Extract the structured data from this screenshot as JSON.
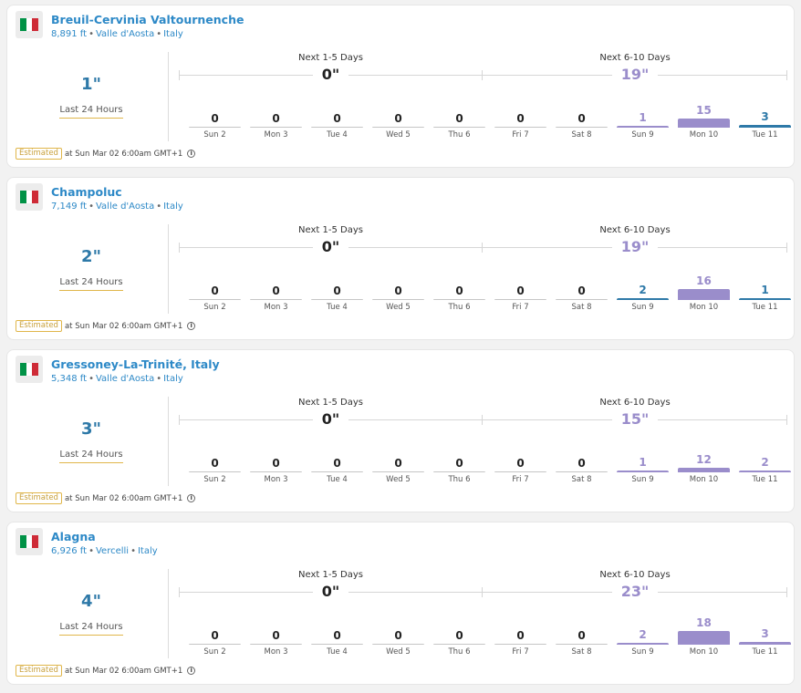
{
  "colors": {
    "link": "#2d89c7",
    "last24": "#2e79a8",
    "forecast": "#9a8dcb",
    "bar_purple": "#9a8dcb",
    "bar_blue": "#2e79a8",
    "bar_gray": "#c6c6c6",
    "flag": [
      "#009246",
      "#ffffff",
      "#ce2b37"
    ]
  },
  "resorts": [
    {
      "name": "Breuil-Cervinia Valtournenche",
      "elevation": "8,891 ft",
      "region": "Valle d'Aosta",
      "country": "Italy",
      "flag_icon": "italy-flag-icon",
      "last24": {
        "value": "1\"",
        "label": "Last 24 Hours"
      },
      "period1": {
        "label": "Next 1-5 Days",
        "total": "0\""
      },
      "period2": {
        "label": "Next 6-10 Days",
        "total": "19\""
      },
      "days": [
        {
          "day": "Sun 2",
          "value": "0",
          "amount": 0,
          "tone": "gray"
        },
        {
          "day": "Mon 3",
          "value": "0",
          "amount": 0,
          "tone": "gray"
        },
        {
          "day": "Tue 4",
          "value": "0",
          "amount": 0,
          "tone": "gray"
        },
        {
          "day": "Wed 5",
          "value": "0",
          "amount": 0,
          "tone": "gray"
        },
        {
          "day": "Thu 6",
          "value": "0",
          "amount": 0,
          "tone": "gray"
        },
        {
          "day": "Fri 7",
          "value": "0",
          "amount": 0,
          "tone": "gray"
        },
        {
          "day": "Sat 8",
          "value": "0",
          "amount": 0,
          "tone": "gray"
        },
        {
          "day": "Sun 9",
          "value": "1",
          "amount": 1,
          "tone": "purple"
        },
        {
          "day": "Mon 10",
          "value": "15",
          "amount": 15,
          "tone": "purple"
        },
        {
          "day": "Tue 11",
          "value": "3",
          "amount": 3,
          "tone": "blue"
        }
      ],
      "estimated": {
        "badge": "Estimated",
        "text": "at Sun Mar 02 6:00am GMT+1",
        "info_icon": "info-icon"
      }
    },
    {
      "name": "Champoluc",
      "elevation": "7,149 ft",
      "region": "Valle d'Aosta",
      "country": "Italy",
      "flag_icon": "italy-flag-icon",
      "last24": {
        "value": "2\"",
        "label": "Last 24 Hours"
      },
      "period1": {
        "label": "Next 1-5 Days",
        "total": "0\""
      },
      "period2": {
        "label": "Next 6-10 Days",
        "total": "19\""
      },
      "days": [
        {
          "day": "Sun 2",
          "value": "0",
          "amount": 0,
          "tone": "gray"
        },
        {
          "day": "Mon 3",
          "value": "0",
          "amount": 0,
          "tone": "gray"
        },
        {
          "day": "Tue 4",
          "value": "0",
          "amount": 0,
          "tone": "gray"
        },
        {
          "day": "Wed 5",
          "value": "0",
          "amount": 0,
          "tone": "gray"
        },
        {
          "day": "Thu 6",
          "value": "0",
          "amount": 0,
          "tone": "gray"
        },
        {
          "day": "Fri 7",
          "value": "0",
          "amount": 0,
          "tone": "gray"
        },
        {
          "day": "Sat 8",
          "value": "0",
          "amount": 0,
          "tone": "gray"
        },
        {
          "day": "Sun 9",
          "value": "2",
          "amount": 2,
          "tone": "blue"
        },
        {
          "day": "Mon 10",
          "value": "16",
          "amount": 16,
          "tone": "purple"
        },
        {
          "day": "Tue 11",
          "value": "1",
          "amount": 1,
          "tone": "blue"
        }
      ],
      "estimated": {
        "badge": "Estimated",
        "text": "at Sun Mar 02 6:00am GMT+1",
        "info_icon": "info-icon"
      }
    },
    {
      "name": "Gressoney-La-Trinité, Italy",
      "elevation": "5,348 ft",
      "region": "Valle d'Aosta",
      "country": "Italy",
      "flag_icon": "italy-flag-icon",
      "last24": {
        "value": "3\"",
        "label": "Last 24 Hours"
      },
      "period1": {
        "label": "Next 1-5 Days",
        "total": "0\""
      },
      "period2": {
        "label": "Next 6-10 Days",
        "total": "15\""
      },
      "days": [
        {
          "day": "Sun 2",
          "value": "0",
          "amount": 0,
          "tone": "gray"
        },
        {
          "day": "Mon 3",
          "value": "0",
          "amount": 0,
          "tone": "gray"
        },
        {
          "day": "Tue 4",
          "value": "0",
          "amount": 0,
          "tone": "gray"
        },
        {
          "day": "Wed 5",
          "value": "0",
          "amount": 0,
          "tone": "gray"
        },
        {
          "day": "Thu 6",
          "value": "0",
          "amount": 0,
          "tone": "gray"
        },
        {
          "day": "Fri 7",
          "value": "0",
          "amount": 0,
          "tone": "gray"
        },
        {
          "day": "Sat 8",
          "value": "0",
          "amount": 0,
          "tone": "gray"
        },
        {
          "day": "Sun 9",
          "value": "1",
          "amount": 1,
          "tone": "purple"
        },
        {
          "day": "Mon 10",
          "value": "12",
          "amount": 12,
          "tone": "purple"
        },
        {
          "day": "Tue 11",
          "value": "2",
          "amount": 2,
          "tone": "purple"
        }
      ],
      "estimated": {
        "badge": "Estimated",
        "text": "at Sun Mar 02 6:00am GMT+1",
        "info_icon": "info-icon"
      }
    },
    {
      "name": "Alagna",
      "elevation": "6,926 ft",
      "region": "Vercelli",
      "country": "Italy",
      "flag_icon": "italy-flag-icon",
      "last24": {
        "value": "4\"",
        "label": "Last 24 Hours"
      },
      "period1": {
        "label": "Next 1-5 Days",
        "total": "0\""
      },
      "period2": {
        "label": "Next 6-10 Days",
        "total": "23\""
      },
      "days": [
        {
          "day": "Sun 2",
          "value": "0",
          "amount": 0,
          "tone": "gray"
        },
        {
          "day": "Mon 3",
          "value": "0",
          "amount": 0,
          "tone": "gray"
        },
        {
          "day": "Tue 4",
          "value": "0",
          "amount": 0,
          "tone": "gray"
        },
        {
          "day": "Wed 5",
          "value": "0",
          "amount": 0,
          "tone": "gray"
        },
        {
          "day": "Thu 6",
          "value": "0",
          "amount": 0,
          "tone": "gray"
        },
        {
          "day": "Fri 7",
          "value": "0",
          "amount": 0,
          "tone": "gray"
        },
        {
          "day": "Sat 8",
          "value": "0",
          "amount": 0,
          "tone": "gray"
        },
        {
          "day": "Sun 9",
          "value": "2",
          "amount": 2,
          "tone": "purple"
        },
        {
          "day": "Mon 10",
          "value": "18",
          "amount": 18,
          "tone": "purple"
        },
        {
          "day": "Tue 11",
          "value": "3",
          "amount": 3,
          "tone": "purple"
        }
      ],
      "estimated": {
        "badge": "Estimated",
        "text": "at Sun Mar 02 6:00am GMT+1",
        "info_icon": "info-icon"
      }
    }
  ]
}
